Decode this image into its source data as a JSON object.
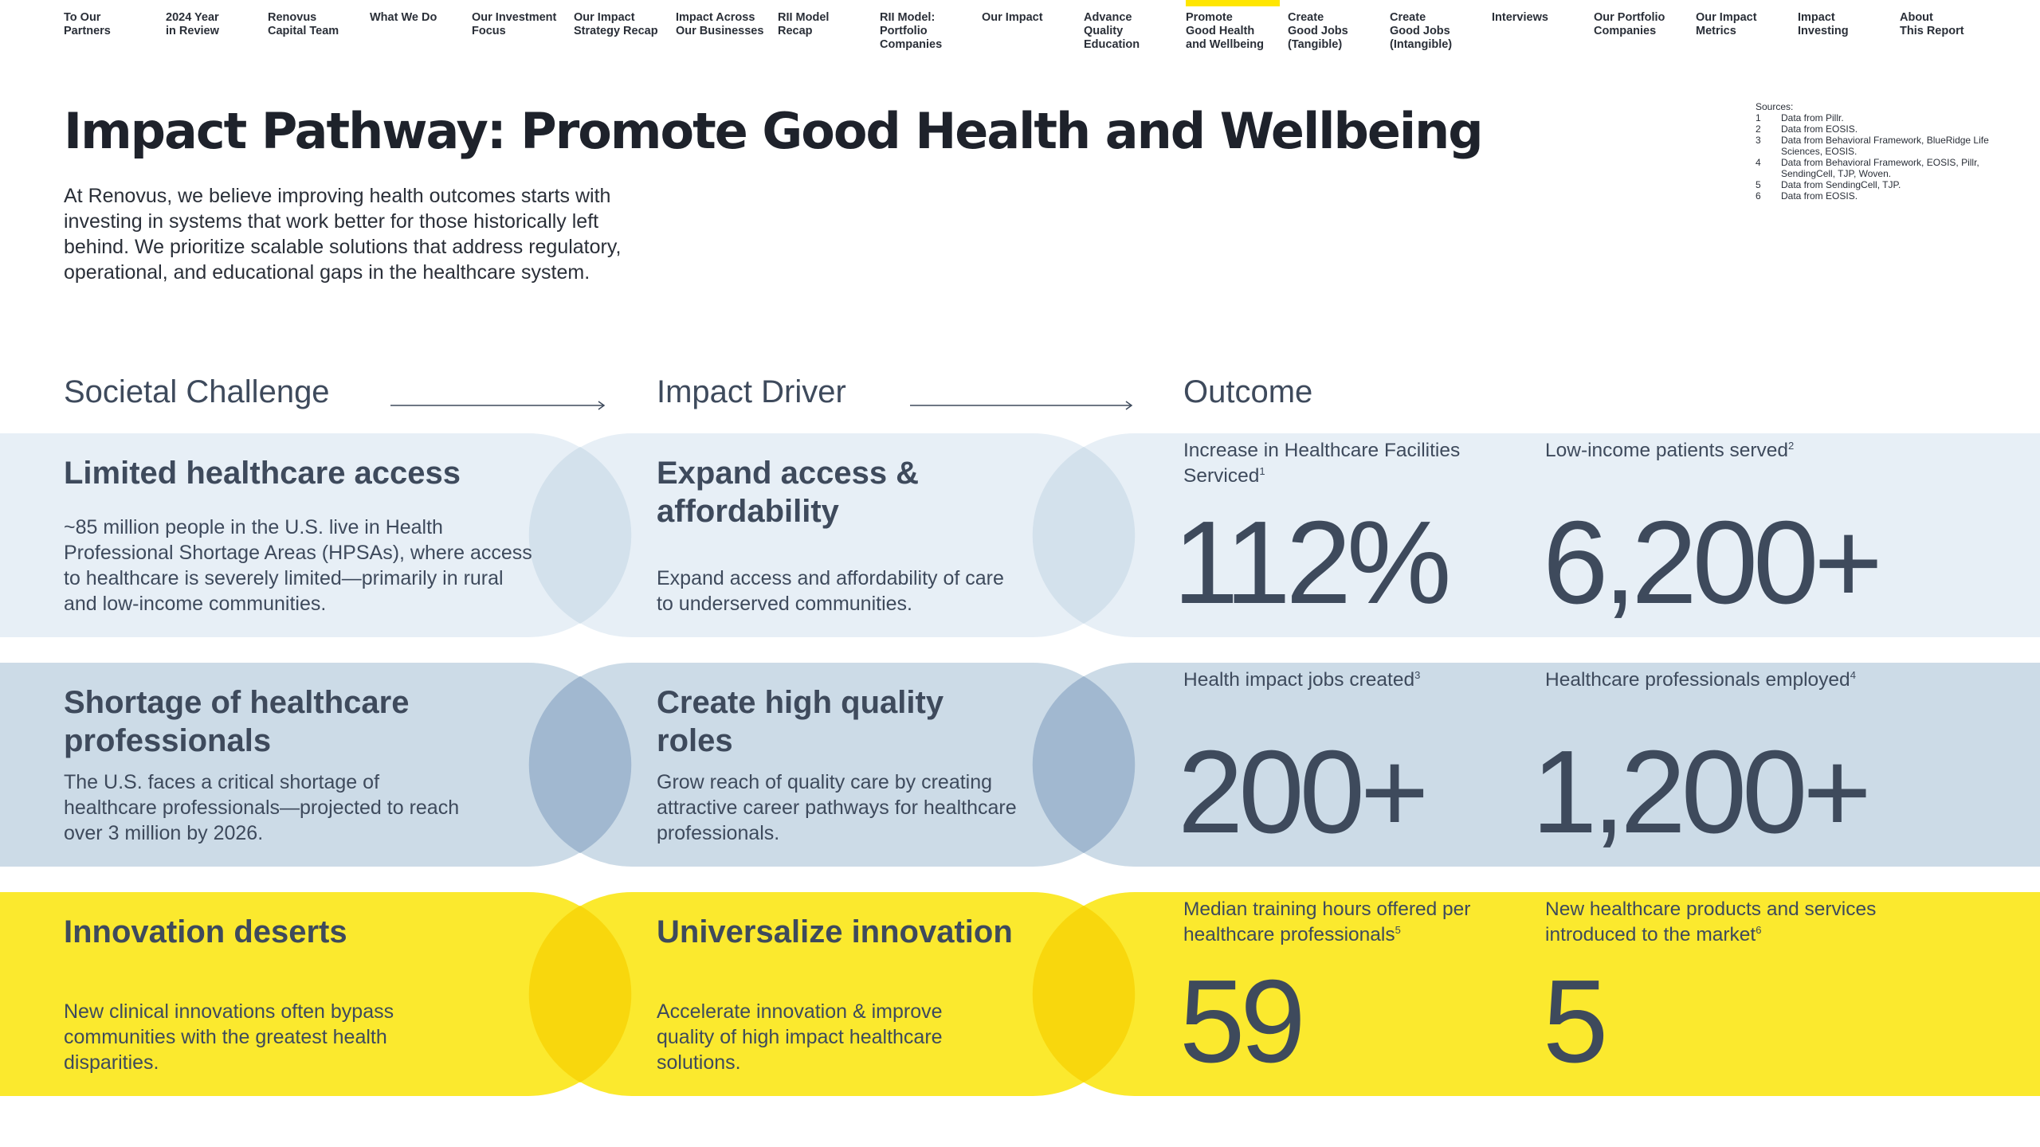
{
  "nav": {
    "items": [
      {
        "label": "To Our\nPartners"
      },
      {
        "label": "2024 Year\nin Review"
      },
      {
        "label": "Renovus\nCapital Team"
      },
      {
        "label": "What We Do"
      },
      {
        "label": "Our Investment\nFocus"
      },
      {
        "label": "Our Impact\nStrategy Recap"
      },
      {
        "label": "Impact Across\nOur Businesses"
      },
      {
        "label": "RII Model\nRecap"
      },
      {
        "label": "RII Model:\nPortfolio\nCompanies"
      },
      {
        "label": "Our Impact"
      },
      {
        "label": "Advance\nQuality\nEducation"
      },
      {
        "label": "Promote\nGood Health\nand Wellbeing"
      },
      {
        "label": "Create\nGood Jobs\n(Tangible)"
      },
      {
        "label": "Create\nGood Jobs\n(Intangible)"
      },
      {
        "label": "Interviews"
      },
      {
        "label": "Our Portfolio\nCompanies"
      },
      {
        "label": "Our Impact\nMetrics"
      },
      {
        "label": "Impact\nInvesting"
      },
      {
        "label": "About\nThis Report"
      }
    ],
    "active_index": 11,
    "active_color": "#ffe600"
  },
  "header": {
    "title": "Impact Pathway: Promote Good Health and Wellbeing",
    "intro": "At Renovus, we believe improving health outcomes starts with investing in systems that work better for those historically left behind. We prioritize scalable solutions that address regulatory, operational, and educational gaps in the healthcare system."
  },
  "sources": {
    "label": "Sources:",
    "items": [
      {
        "num": "1",
        "text": "Data from Pillr."
      },
      {
        "num": "2",
        "text": "Data from EOSIS."
      },
      {
        "num": "3",
        "text": "Data from Behavioral Framework, BlueRidge Life Sciences, EOSIS."
      },
      {
        "num": "4",
        "text": "Data from Behavioral Framework, EOSIS, Pillr, SendingCell, TJP, Woven."
      },
      {
        "num": "5",
        "text": "Data from SendingCell, TJP."
      },
      {
        "num": "6",
        "text": "Data from EOSIS."
      }
    ]
  },
  "columns": {
    "challenge": "Societal Challenge",
    "driver": "Impact Driver",
    "outcome": "Outcome"
  },
  "rows": [
    {
      "challenge_title": "Limited healthcare access",
      "challenge_text": "~85 million people in the U.S. live in Health Professional Shortage Areas (HPSAs), where access to healthcare is severely limited—primarily in rural and low-income communities.",
      "driver_title": "Expand access & affordability",
      "driver_text": "Expand access and affordability of care to underserved communities.",
      "metrics": [
        {
          "label": "Increase in Healthcare Facilities Serviced",
          "note": "1",
          "value": "112%"
        },
        {
          "label": "Low-income patients served",
          "note": "2",
          "value": "6,200+"
        }
      ],
      "colors": {
        "band": "#e7eff6",
        "overlap": "#d3e1ec"
      }
    },
    {
      "challenge_title": "Shortage of healthcare professionals",
      "challenge_text": "The U.S. faces a critical shortage of healthcare professionals—projected to reach over 3 million by 2026.",
      "driver_title": "Create high quality roles",
      "driver_text": "Grow reach of quality care by creating attractive career pathways for healthcare professionals.",
      "metrics": [
        {
          "label": "Health impact jobs created",
          "note": "3",
          "value": "200+"
        },
        {
          "label": "Healthcare professionals employed",
          "note": "4",
          "value": "1,200+"
        }
      ],
      "colors": {
        "band": "#ccdbe7",
        "overlap": "#a1b8d0"
      }
    },
    {
      "challenge_title": "Innovation deserts",
      "challenge_text": "New clinical innovations often bypass communities with the greatest health disparities.",
      "driver_title": "Universalize innovation",
      "driver_text": "Accelerate innovation & improve quality of high impact healthcare solutions.",
      "metrics": [
        {
          "label": "Median training hours offered per healthcare professionals",
          "note": "5",
          "value": "59"
        },
        {
          "label": "New healthcare products and services introduced to the market",
          "note": "6",
          "value": "5"
        }
      ],
      "colors": {
        "band": "#fbe92e",
        "overlap": "#f8d70d"
      }
    }
  ]
}
